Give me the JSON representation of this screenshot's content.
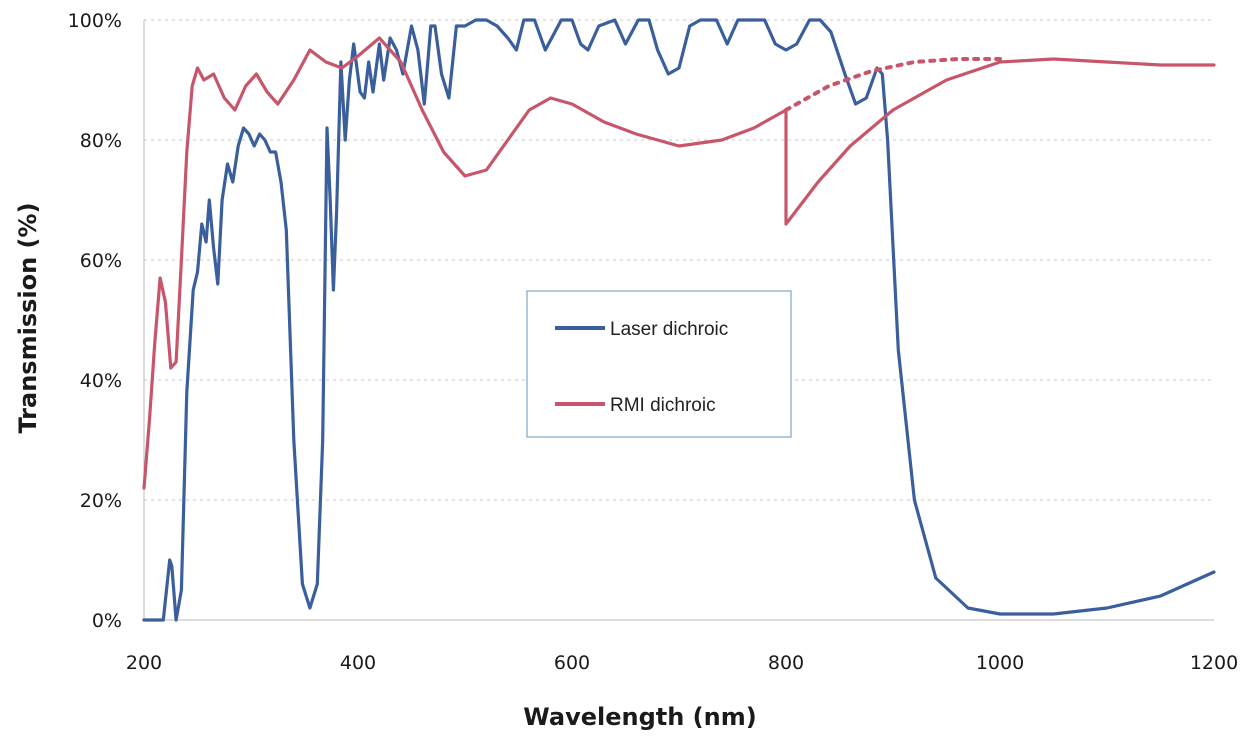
{
  "chart_data": {
    "type": "line",
    "xlabel": "Wavelength (nm)",
    "ylabel": "Transmission (%)",
    "xlim": [
      200,
      1200
    ],
    "ylim": [
      0,
      100
    ],
    "x_ticks": [
      200,
      400,
      600,
      800,
      1000,
      1200
    ],
    "x_tick_labels": [
      "200",
      "400",
      "600",
      "800",
      "1000",
      "1200"
    ],
    "y_ticks": [
      0,
      20,
      40,
      60,
      80,
      100
    ],
    "y_tick_labels": [
      "0%",
      "20%",
      "40%",
      "60%",
      "80%",
      "100%"
    ],
    "grid": "horizontal",
    "legend_position": "center",
    "series": [
      {
        "name": "Laser dichroic",
        "color": "#3a5f9c",
        "points": [
          [
            200,
            0
          ],
          [
            218,
            0
          ],
          [
            224,
            10
          ],
          [
            226,
            9
          ],
          [
            230,
            0
          ],
          [
            235,
            5
          ],
          [
            240,
            38
          ],
          [
            246,
            55
          ],
          [
            250,
            58
          ],
          [
            254,
            66
          ],
          [
            258,
            63
          ],
          [
            261,
            70
          ],
          [
            265,
            62
          ],
          [
            269,
            56
          ],
          [
            273,
            70
          ],
          [
            278,
            76
          ],
          [
            283,
            73
          ],
          [
            288,
            79
          ],
          [
            293,
            82
          ],
          [
            298,
            81
          ],
          [
            303,
            79
          ],
          [
            308,
            81
          ],
          [
            313,
            80
          ],
          [
            318,
            78
          ],
          [
            323,
            78
          ],
          [
            328,
            73
          ],
          [
            333,
            65
          ],
          [
            340,
            30
          ],
          [
            348,
            6
          ],
          [
            355,
            2
          ],
          [
            362,
            6
          ],
          [
            367,
            30
          ],
          [
            371,
            82
          ],
          [
            374,
            70
          ],
          [
            377,
            55
          ],
          [
            380,
            68
          ],
          [
            384,
            93
          ],
          [
            388,
            80
          ],
          [
            392,
            90
          ],
          [
            396,
            96
          ],
          [
            402,
            88
          ],
          [
            406,
            87
          ],
          [
            410,
            93
          ],
          [
            414,
            88
          ],
          [
            420,
            96
          ],
          [
            424,
            90
          ],
          [
            430,
            97
          ],
          [
            436,
            95
          ],
          [
            442,
            91
          ],
          [
            450,
            99
          ],
          [
            456,
            95
          ],
          [
            462,
            86
          ],
          [
            468,
            99
          ],
          [
            472,
            99
          ],
          [
            478,
            91
          ],
          [
            485,
            87
          ],
          [
            492,
            99
          ],
          [
            500,
            99
          ],
          [
            510,
            100
          ],
          [
            520,
            100
          ],
          [
            530,
            99
          ],
          [
            540,
            97
          ],
          [
            548,
            95
          ],
          [
            555,
            100
          ],
          [
            565,
            100
          ],
          [
            575,
            95
          ],
          [
            590,
            100
          ],
          [
            600,
            100
          ],
          [
            608,
            96
          ],
          [
            615,
            95
          ],
          [
            625,
            99
          ],
          [
            640,
            100
          ],
          [
            650,
            96
          ],
          [
            662,
            100
          ],
          [
            672,
            100
          ],
          [
            680,
            95
          ],
          [
            690,
            91
          ],
          [
            700,
            92
          ],
          [
            710,
            99
          ],
          [
            720,
            100
          ],
          [
            735,
            100
          ],
          [
            745,
            96
          ],
          [
            755,
            100
          ],
          [
            770,
            100
          ],
          [
            780,
            100
          ],
          [
            790,
            96
          ],
          [
            800,
            95
          ],
          [
            810,
            96
          ],
          [
            822,
            100
          ],
          [
            832,
            100
          ],
          [
            842,
            98
          ],
          [
            855,
            91
          ],
          [
            865,
            86
          ],
          [
            875,
            87
          ],
          [
            885,
            92
          ],
          [
            890,
            91
          ],
          [
            895,
            80
          ],
          [
            905,
            45
          ],
          [
            920,
            20
          ],
          [
            940,
            7
          ],
          [
            970,
            2
          ],
          [
            1000,
            1
          ],
          [
            1050,
            1
          ],
          [
            1100,
            2
          ],
          [
            1150,
            4
          ],
          [
            1200,
            8
          ]
        ]
      },
      {
        "name": "RMI dichroic",
        "color": "#c8566a",
        "points": [
          [
            200,
            22
          ],
          [
            205,
            33
          ],
          [
            210,
            46
          ],
          [
            215,
            57
          ],
          [
            220,
            53
          ],
          [
            225,
            42
          ],
          [
            230,
            43
          ],
          [
            235,
            60
          ],
          [
            240,
            78
          ],
          [
            245,
            89
          ],
          [
            250,
            92
          ],
          [
            256,
            90
          ],
          [
            265,
            91
          ],
          [
            275,
            87
          ],
          [
            285,
            85
          ],
          [
            295,
            89
          ],
          [
            305,
            91
          ],
          [
            315,
            88
          ],
          [
            325,
            86
          ],
          [
            340,
            90
          ],
          [
            355,
            95
          ],
          [
            370,
            93
          ],
          [
            385,
            92
          ],
          [
            400,
            94
          ],
          [
            420,
            97
          ],
          [
            440,
            93
          ],
          [
            460,
            85
          ],
          [
            480,
            78
          ],
          [
            500,
            74
          ],
          [
            520,
            75
          ],
          [
            540,
            80
          ],
          [
            560,
            85
          ],
          [
            580,
            87
          ],
          [
            600,
            86
          ],
          [
            630,
            83
          ],
          [
            660,
            81
          ],
          [
            700,
            79
          ],
          [
            740,
            80
          ],
          [
            770,
            82
          ],
          [
            800,
            85
          ],
          [
            800,
            66
          ],
          [
            830,
            73
          ],
          [
            860,
            79
          ],
          [
            900,
            85
          ],
          [
            950,
            90
          ],
          [
            1000,
            93
          ],
          [
            1050,
            93.5
          ],
          [
            1100,
            93
          ],
          [
            1150,
            92.5
          ],
          [
            1200,
            92.5
          ]
        ],
        "dotted_segment": [
          [
            800,
            85
          ],
          [
            840,
            89
          ],
          [
            880,
            91.5
          ],
          [
            920,
            93
          ],
          [
            960,
            93.5
          ],
          [
            1000,
            93.5
          ]
        ]
      }
    ]
  }
}
